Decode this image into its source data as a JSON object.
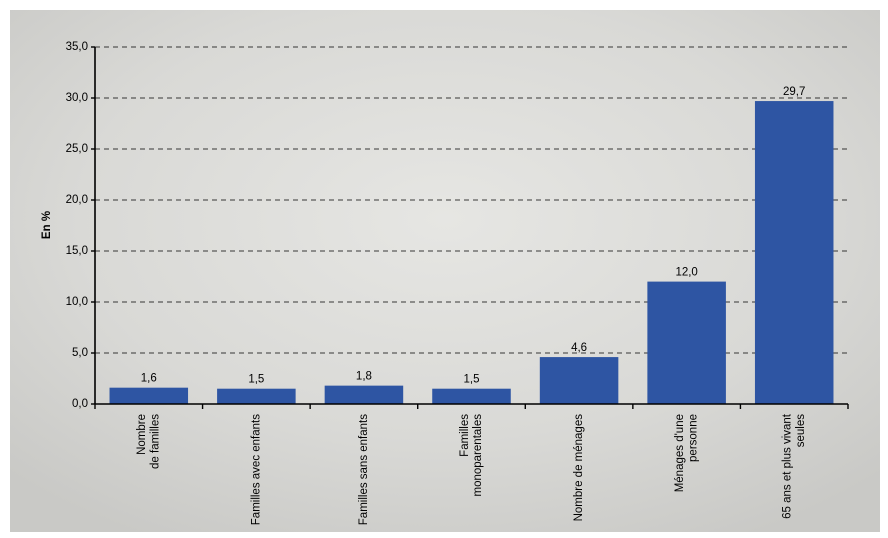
{
  "chart_data": {
    "type": "bar",
    "y_label": "En %",
    "categories": [
      "Nombre\nde familles",
      "Familles avec enfants",
      "Familles sans enfants",
      "Familles\nmonoparentales",
      "Nombre de ménages",
      "Ménages d'une\npersonne",
      "65 ans et plus vivant\nseules"
    ],
    "values": [
      1.6,
      1.5,
      1.8,
      1.5,
      4.6,
      12.0,
      29.7
    ],
    "value_labels": [
      "1,6",
      "1,5",
      "1,8",
      "1,5",
      "4,6",
      "12,0",
      "29,7"
    ],
    "color": "#2e55a3",
    "ylim": [
      0,
      35
    ],
    "yticks": [
      {
        "value": 0,
        "label": "0,0"
      },
      {
        "value": 5,
        "label": "5,0"
      },
      {
        "value": 10,
        "label": "10,0"
      },
      {
        "value": 15,
        "label": "15,0"
      },
      {
        "value": 20,
        "label": "20,0"
      },
      {
        "value": 25,
        "label": "25,0"
      },
      {
        "value": 30,
        "label": "30,0"
      },
      {
        "value": 35,
        "label": "35,0"
      }
    ],
    "grid": true
  }
}
